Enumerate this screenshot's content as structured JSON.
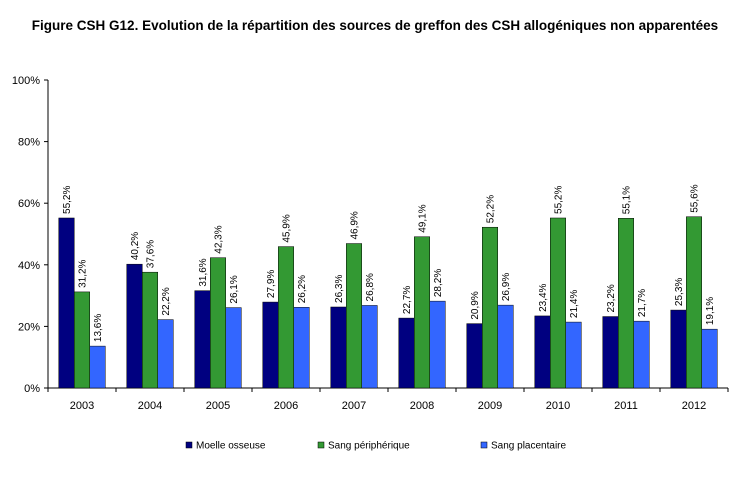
{
  "chart_data": {
    "type": "bar",
    "title": "Figure CSH G12. Evolution de la répartition des sources de greffon des CSH allogéniques non apparentées",
    "categories": [
      "2003",
      "2004",
      "2005",
      "2006",
      "2007",
      "2008",
      "2009",
      "2010",
      "2011",
      "2012"
    ],
    "ylim": [
      0,
      100
    ],
    "yticks": [
      "0%",
      "20%",
      "40%",
      "60%",
      "80%",
      "100%"
    ],
    "grid": false,
    "legend_position": "bottom",
    "series": [
      {
        "name": "Moelle osseuse",
        "color": "#000080",
        "values": [
          55.2,
          40.2,
          31.6,
          27.9,
          26.3,
          22.7,
          20.9,
          23.4,
          23.2,
          25.3
        ],
        "labels": [
          "55,2%",
          "40,2%",
          "31,6%",
          "27,9%",
          "26,3%",
          "22,7%",
          "20,9%",
          "23,4%",
          "23,2%",
          "25,3%"
        ]
      },
      {
        "name": "Sang périphérique",
        "color": "#339933",
        "values": [
          31.2,
          37.6,
          42.3,
          45.9,
          46.9,
          49.1,
          52.2,
          55.2,
          55.1,
          55.6
        ],
        "labels": [
          "31,2%",
          "37,6%",
          "42,3%",
          "45,9%",
          "46,9%",
          "49,1%",
          "52,2%",
          "55,2%",
          "55,1%",
          "55,6%"
        ]
      },
      {
        "name": "Sang placentaire",
        "color": "#3366ff",
        "values": [
          13.6,
          22.2,
          26.1,
          26.2,
          26.8,
          28.2,
          26.9,
          21.4,
          21.7,
          19.1
        ],
        "labels": [
          "13,6%",
          "22,2%",
          "26,1%",
          "26,2%",
          "26,8%",
          "28,2%",
          "26,9%",
          "21,4%",
          "21,7%",
          "19,1%"
        ]
      }
    ]
  }
}
